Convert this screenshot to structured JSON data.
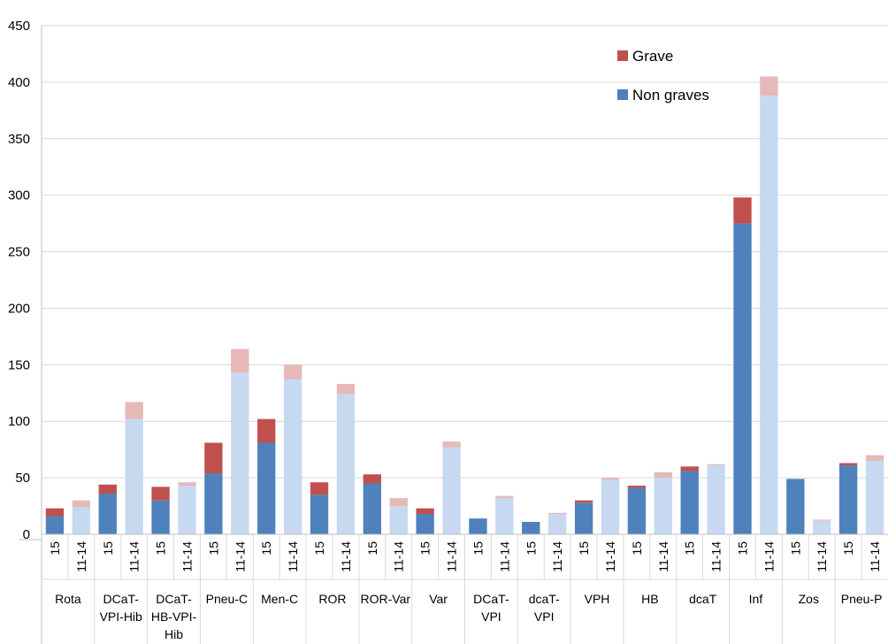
{
  "chart_data": {
    "type": "bar",
    "stacked": true,
    "groups": [
      {
        "label": [
          "Rota"
        ],
        "bars": [
          {
            "x": "15",
            "non_graves": 16,
            "grave": 7
          },
          {
            "x": "11-14",
            "non_graves": 24,
            "grave": 6
          }
        ]
      },
      {
        "label": [
          "DCaT-",
          "VPI-Hib"
        ],
        "bars": [
          {
            "x": "15",
            "non_graves": 36,
            "grave": 8
          },
          {
            "x": "11-14",
            "non_graves": 102,
            "grave": 15
          }
        ]
      },
      {
        "label": [
          "DCaT-",
          "HB-VPI-",
          "Hib"
        ],
        "bars": [
          {
            "x": "15",
            "non_graves": 30,
            "grave": 12
          },
          {
            "x": "11-14",
            "non_graves": 43,
            "grave": 3
          }
        ]
      },
      {
        "label": [
          "Pneu-C"
        ],
        "bars": [
          {
            "x": "15",
            "non_graves": 54,
            "grave": 27
          },
          {
            "x": "11-14",
            "non_graves": 143,
            "grave": 21
          }
        ]
      },
      {
        "label": [
          "Men-C"
        ],
        "bars": [
          {
            "x": "15",
            "non_graves": 81,
            "grave": 21
          },
          {
            "x": "11-14",
            "non_graves": 137,
            "grave": 13
          }
        ]
      },
      {
        "label": [
          "ROR"
        ],
        "bars": [
          {
            "x": "15",
            "non_graves": 35,
            "grave": 11
          },
          {
            "x": "11-14",
            "non_graves": 124,
            "grave": 9
          }
        ]
      },
      {
        "label": [
          "ROR-Var"
        ],
        "bars": [
          {
            "x": "15",
            "non_graves": 45,
            "grave": 8
          },
          {
            "x": "11-14",
            "non_graves": 25,
            "grave": 7
          }
        ]
      },
      {
        "label": [
          "Var"
        ],
        "bars": [
          {
            "x": "15",
            "non_graves": 18,
            "grave": 5
          },
          {
            "x": "11-14",
            "non_graves": 77,
            "grave": 5
          }
        ]
      },
      {
        "label": [
          "DCaT-",
          "VPI"
        ],
        "bars": [
          {
            "x": "15",
            "non_graves": 14,
            "grave": 0
          },
          {
            "x": "11-14",
            "non_graves": 32,
            "grave": 2
          }
        ]
      },
      {
        "label": [
          "dcaT-",
          "VPI"
        ],
        "bars": [
          {
            "x": "15",
            "non_graves": 11,
            "grave": 0
          },
          {
            "x": "11-14",
            "non_graves": 18,
            "grave": 1
          }
        ]
      },
      {
        "label": [
          "VPH"
        ],
        "bars": [
          {
            "x": "15",
            "non_graves": 28,
            "grave": 2
          },
          {
            "x": "11-14",
            "non_graves": 48,
            "grave": 2
          }
        ]
      },
      {
        "label": [
          "HB"
        ],
        "bars": [
          {
            "x": "15",
            "non_graves": 41,
            "grave": 2
          },
          {
            "x": "11-14",
            "non_graves": 50,
            "grave": 5
          }
        ]
      },
      {
        "label": [
          "dcaT"
        ],
        "bars": [
          {
            "x": "15",
            "non_graves": 56,
            "grave": 4
          },
          {
            "x": "11-14",
            "non_graves": 61,
            "grave": 1
          }
        ]
      },
      {
        "label": [
          "Inf"
        ],
        "bars": [
          {
            "x": "15",
            "non_graves": 275,
            "grave": 23
          },
          {
            "x": "11-14",
            "non_graves": 388,
            "grave": 17
          }
        ]
      },
      {
        "label": [
          "Zos"
        ],
        "bars": [
          {
            "x": "15",
            "non_graves": 49,
            "grave": 0
          },
          {
            "x": "11-14",
            "non_graves": 12,
            "grave": 1
          }
        ]
      },
      {
        "label": [
          "Pneu-P"
        ],
        "bars": [
          {
            "x": "15",
            "non_graves": 61,
            "grave": 2
          },
          {
            "x": "11-14",
            "non_graves": 65,
            "grave": 5
          }
        ]
      }
    ],
    "series": [
      {
        "name": "Grave",
        "colors": {
          "15": "#c0504d",
          "11-14": "#e6b9b8"
        }
      },
      {
        "name": "Non graves",
        "colors": {
          "15": "#4f81bd",
          "11-14": "#c6d9f1"
        }
      }
    ],
    "ylim": [
      0,
      450
    ],
    "yticks": [
      0,
      50,
      100,
      150,
      200,
      250,
      300,
      350,
      400,
      450
    ],
    "grid": true,
    "legend_position": "top-right"
  }
}
